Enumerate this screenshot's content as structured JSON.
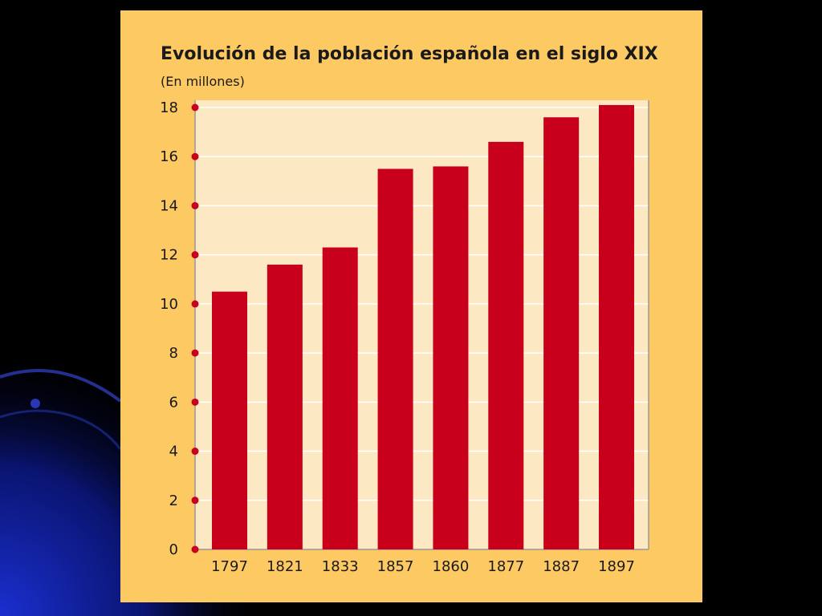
{
  "colors": {
    "page_bg": "#000000",
    "card_bg": "#fdc963",
    "plot_bg": "#fde8c4",
    "bar": "#c8001c",
    "marker": "#c8001c"
  },
  "chart_data": {
    "type": "bar",
    "title": "Evolución de la población española en el siglo XIX",
    "subtitle": "(En millones)",
    "categories": [
      "1797",
      "1821",
      "1833",
      "1857",
      "1860",
      "1877",
      "1887",
      "1897"
    ],
    "values": [
      10.5,
      11.6,
      12.3,
      15.5,
      15.6,
      16.6,
      17.6,
      18.1
    ],
    "yticks": [
      0,
      2,
      4,
      6,
      8,
      10,
      12,
      14,
      16,
      18
    ],
    "ylim": [
      0,
      18
    ],
    "grid": true,
    "legend": "none"
  }
}
